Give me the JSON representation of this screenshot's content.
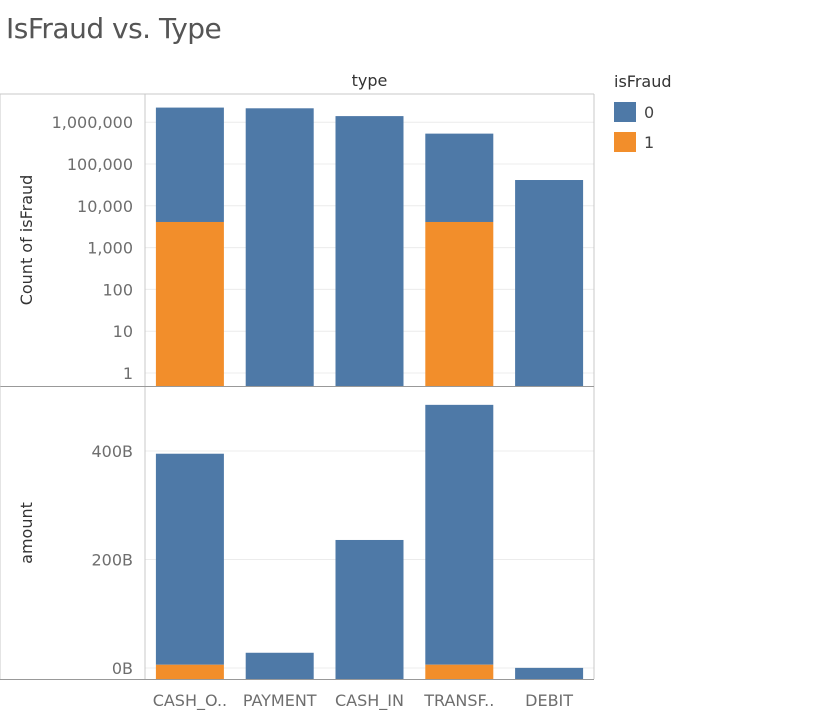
{
  "title": "IsFraud vs. Type",
  "legend": {
    "title": "isFraud",
    "items": [
      {
        "label": "0",
        "color": "#4e79a7"
      },
      {
        "label": "1",
        "color": "#f28e2b"
      }
    ]
  },
  "chart_data": [
    {
      "type": "bar",
      "stacked": true,
      "scale": "log",
      "column_header": "type",
      "ylabel": "Count of isFraud",
      "categories": [
        "CASH_O..",
        "PAYMENT",
        "CASH_IN",
        "TRANSF..",
        "DEBIT"
      ],
      "yticks": [
        1,
        10,
        100,
        1000,
        10000,
        100000,
        1000000
      ],
      "ytick_labels": [
        "1",
        "10",
        "100",
        "1,000",
        "10,000",
        "100,000",
        "1,000,000"
      ],
      "series": [
        {
          "name": "0",
          "values": [
            2233000,
            2151000,
            1399000,
            528800,
            41400
          ]
        },
        {
          "name": "1",
          "values": [
            4100,
            0,
            0,
            4100,
            0
          ]
        }
      ]
    },
    {
      "type": "bar",
      "stacked": true,
      "ylabel": "amount",
      "ylim": [
        0,
        500000000000
      ],
      "yticks": [
        0,
        200000000000,
        400000000000
      ],
      "ytick_labels": [
        "0B",
        "200B",
        "400B"
      ],
      "categories": [
        "CASH_O..",
        "PAYMENT",
        "CASH_IN",
        "TRANSF..",
        "DEBIT"
      ],
      "series": [
        {
          "name": "0",
          "values": [
            389000000000,
            28100000000,
            236000000000,
            479000000000,
            227000000
          ]
        },
        {
          "name": "1",
          "values": [
            5990000000,
            0,
            0,
            6070000000,
            0
          ]
        }
      ]
    }
  ]
}
